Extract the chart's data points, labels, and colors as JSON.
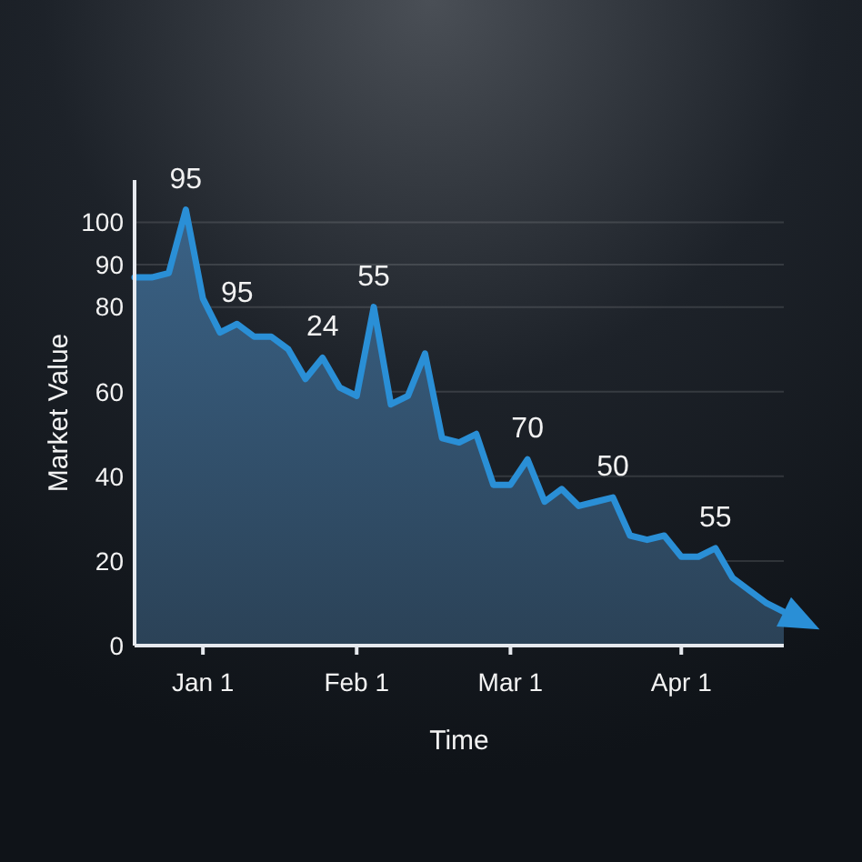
{
  "chart_data": {
    "type": "area",
    "xlabel": "Time",
    "ylabel": "Market Value",
    "categories": [
      null,
      null,
      null,
      null,
      "Jan 1",
      null,
      null,
      null,
      null,
      null,
      null,
      null,
      null,
      "Feb 1",
      null,
      null,
      null,
      null,
      null,
      null,
      null,
      null,
      "Mar 1",
      null,
      null,
      null,
      null,
      null,
      null,
      null,
      null,
      null,
      "Apr 1",
      null,
      null,
      null,
      null,
      null,
      null
    ],
    "series": [
      {
        "color": "#2a8fd6",
        "values": [
          87,
          87,
          88,
          103,
          82,
          74,
          76,
          73,
          73,
          70,
          63,
          68,
          61,
          59,
          80,
          57,
          59,
          69,
          49,
          48,
          50,
          38,
          38,
          44,
          34,
          37,
          33,
          34,
          35,
          26,
          25,
          26,
          21,
          21,
          23,
          16,
          13,
          10,
          8
        ]
      }
    ],
    "ylim": [
      0,
      110
    ],
    "yticks": [
      0,
      20,
      40,
      60,
      80,
      90,
      100
    ],
    "grid": "y",
    "annotations": [
      {
        "text": "95",
        "y": 103
      },
      {
        "text": "95",
        "y": 76
      },
      {
        "text": "24",
        "y": 68
      },
      {
        "text": "55",
        "y": 80
      },
      {
        "text": "70",
        "y": 44
      },
      {
        "text": "50",
        "y": 35
      },
      {
        "text": "55",
        "y": 23
      }
    ]
  }
}
